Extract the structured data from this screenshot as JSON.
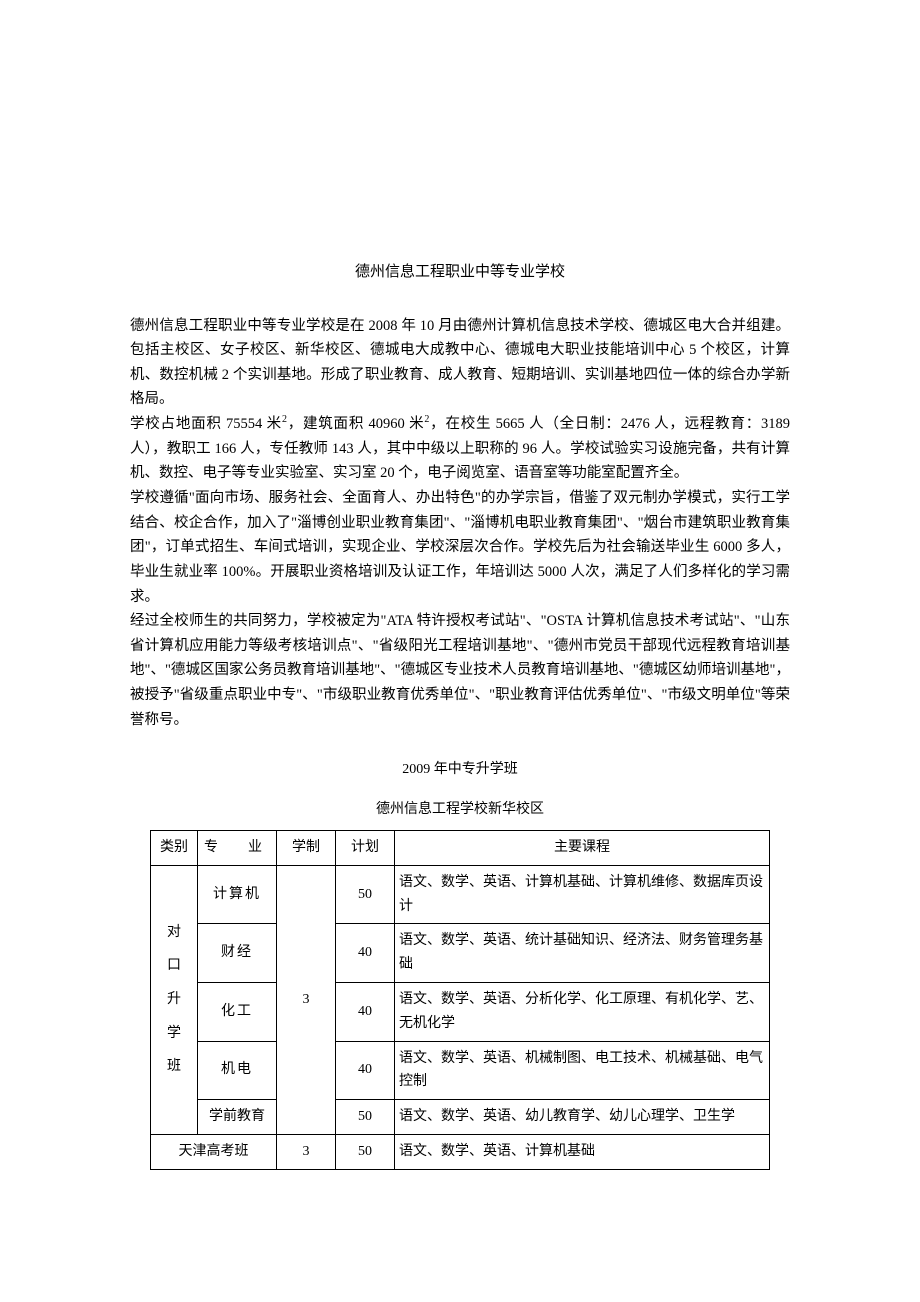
{
  "title": "德州信息工程职业中等专业学校",
  "paragraphs": {
    "p1": "德州信息工程职业中等专业学校是在 2008 年 10 月由德州计算机信息技术学校、德城区电大合并组建。包括主校区、女子校区、新华校区、德城电大成教中心、德城电大职业技能培训中心 5 个校区，计算机、数控机械 2 个实训基地。形成了职业教育、成人教育、短期培训、实训基地四位一体的综合办学新格局。",
    "p2a": " 学校占地面积 75554 米",
    "p2b": "，建筑面积 40960 米",
    "p2c": "，在校生 5665 人（全日制：2476 人，远程教育：3189 人），教职工 166 人，专任教师 143 人，其中中级以上职称的 96 人。学校试验实习设施完备，共有计算机、数控、电子等专业实验室、实习室 20 个，电子阅览室、语音室等功能室配置齐全。",
    "p3": "学校遵循\"面向市场、服务社会、全面育人、办出特色\"的办学宗旨，借鉴了双元制办学模式，实行工学结合、校企合作，加入了\"淄博创业职业教育集团\"、\"淄博机电职业教育集团\"、\"烟台市建筑职业教育集团\"，订单式招生、车间式培训，实现企业、学校深层次合作。学校先后为社会输送毕业生 6000 多人，毕业生就业率 100%。开展职业资格培训及认证工作，年培训达 5000 人次，满足了人们多样化的学习需求。",
    "p4": " 经过全校师生的共同努力，学校被定为\"ATA 特许授权考试站\"、\"OSTA 计算机信息技术考试站\"、\"山东省计算机应用能力等级考核培训点\"、\"省级阳光工程培训基地\"、\"德州市党员干部现代远程教育培训基地\"、\"德城区国家公务员教育培训基地\"、\"德城区专业技术人员教育培训基地、\"德城区幼师培训基地\"，被授予\"省级重点职业中专\"、\"市级职业教育优秀单位\"、\"职业教育评估优秀单位\"、\"市级文明单位\"等荣誉称号。"
  },
  "sup2": "2",
  "subheading": "2009 年中专升学班",
  "tableheading": "德州信息工程学校新华校区",
  "tableHeaders": {
    "category": "类别",
    "major": "专　业",
    "duration": "学制",
    "plan": "计划",
    "courses": "主要课程"
  },
  "categoryLabel": {
    "c1": "对",
    "c2": "口",
    "c3": "升",
    "c4": "学",
    "c5": "班"
  },
  "durationValue": "3",
  "rows": {
    "r1": {
      "major": "计算机",
      "plan": "50",
      "courses": "语文、数学、英语、计算机基础、计算机维修、数据库页设计"
    },
    "r2": {
      "major": "财经",
      "plan": "40",
      "courses": "语文、数学、英语、统计基础知识、经济法、财务管理务基础"
    },
    "r3": {
      "major": "化工",
      "plan": "40",
      "courses": "语文、数学、英语、分析化学、化工原理、有机化学、艺、无机化学"
    },
    "r4": {
      "major": "机电",
      "plan": "40",
      "courses": "语文、数学、英语、机械制图、电工技术、机械基础、电气控制"
    },
    "r5": {
      "major": "学前教育",
      "plan": "50",
      "courses": "语文、数学、英语、幼儿教育学、幼儿心理学、卫生学"
    }
  },
  "tianjin": {
    "label": "天津高考班",
    "duration": "3",
    "plan": "50",
    "courses": "语文、数学、英语、计算机基础"
  },
  "colors": {
    "text": "#000000",
    "background": "#ffffff",
    "border": "#000000"
  }
}
